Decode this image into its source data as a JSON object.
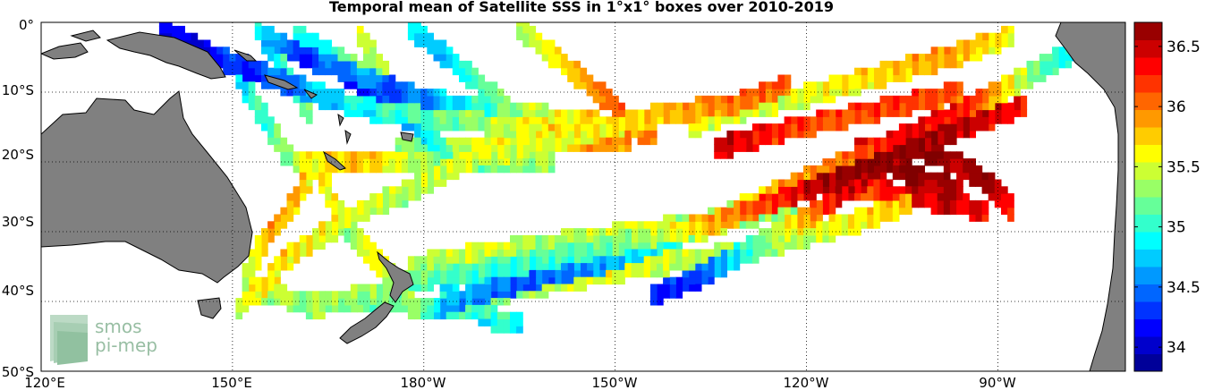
{
  "chart_data": {
    "type": "heatmap",
    "title": "Temporal mean of Satellite SSS in 1°x1° boxes over 2010-2019",
    "x_ticks": [
      "120°E",
      "150°E",
      "180°W",
      "150°W",
      "120°W",
      "90°W"
    ],
    "y_ticks": [
      "0°",
      "10°S",
      "20°S",
      "30°S",
      "40°S",
      "50°S"
    ],
    "xlim_deg_east": [
      120,
      290
    ],
    "ylim_deg": [
      0,
      -50
    ],
    "grid": true,
    "colorbar": {
      "range": [
        33.8,
        36.7
      ],
      "ticks": [
        "34",
        "34.5",
        "35",
        "35.5",
        "36",
        "36.5"
      ],
      "colormap": "jet"
    },
    "tracks": [
      {
        "lon": [
          237,
          228,
          218,
          205,
          195,
          186,
          178,
          170,
          163,
          158,
          156,
          153,
          151
        ],
        "lat": [
          -9,
          -12,
          -13,
          -16,
          -18,
          -20,
          -24,
          -27,
          -31,
          -34,
          -37,
          -39,
          -41
        ],
        "values": [
          36.1,
          36.0,
          35.8,
          35.6,
          35.5,
          35.5,
          35.4,
          35.5,
          35.6,
          35.7,
          35.7,
          35.6,
          35.5
        ]
      },
      {
        "lon": [
          274,
          262,
          252,
          243,
          234,
          224,
          214,
          204,
          194,
          185,
          178,
          172,
          166,
          162
        ],
        "lat": [
          -12,
          -16,
          -20,
          -23,
          -26,
          -29,
          -31,
          -33,
          -35,
          -36,
          -37,
          -39,
          -40,
          -41
        ],
        "values": [
          36.3,
          36.6,
          36.7,
          36.6,
          36.2,
          35.8,
          35.3,
          35.1,
          35.0,
          35.1,
          35.2,
          35.3,
          35.3,
          35.4
        ]
      },
      {
        "lon": [
          286,
          276,
          266,
          256,
          246,
          236,
          226,
          216,
          206,
          196,
          188,
          182
        ],
        "lat": [
          -2,
          -7,
          -12,
          -16,
          -20,
          -24,
          -28,
          -32,
          -35,
          -37,
          -39,
          -41
        ],
        "values": [
          34.6,
          35.2,
          36.2,
          36.4,
          36.0,
          35.9,
          35.3,
          34.9,
          34.6,
          34.4,
          34.6,
          34.7
        ]
      },
      {
        "lon": [
          282,
          271,
          262,
          253,
          246,
          240,
          234,
          228,
          222,
          216
        ],
        "lat": [
          -4,
          -9,
          -15,
          -20,
          -24,
          -28,
          -31,
          -34,
          -37,
          -39
        ],
        "values": [
          35.5,
          35.8,
          36.4,
          36.6,
          36.5,
          35.9,
          35.3,
          34.8,
          34.3,
          34.2
        ]
      },
      {
        "lon": [
          272,
          262,
          250,
          238,
          228,
          222
        ],
        "lat": [
          -2,
          -5,
          -8,
          -11,
          -13,
          -15
        ],
        "values": [
          35.6,
          35.9,
          35.7,
          35.5,
          35.5,
          35.6
        ]
      },
      {
        "lon": [
          264,
          254,
          244,
          234,
          226
        ],
        "lat": [
          -10,
          -12,
          -14,
          -16,
          -18
        ],
        "values": [
          36.1,
          36.2,
          36.1,
          36.3,
          36.5
        ]
      },
      {
        "lon": [
          139,
          147,
          156,
          165,
          174,
          184,
          194,
          204,
          212
        ],
        "lat": [
          -1,
          -5,
          -8,
          -11,
          -13,
          -14,
          -15,
          -16,
          -17
        ],
        "values": [
          34.0,
          34.2,
          34.4,
          34.8,
          35.0,
          35.2,
          35.5,
          35.8,
          36.0
        ]
      },
      {
        "lon": [
          155,
          161,
          168,
          176,
          185,
          194,
          203,
          211,
          216
        ],
        "lat": [
          -2,
          -5,
          -7,
          -10,
          -12,
          -13,
          -14,
          -15,
          -16
        ],
        "values": [
          34.6,
          34.3,
          34.6,
          34.4,
          34.8,
          35.3,
          35.6,
          35.9,
          36.0
        ]
      },
      {
        "lon": [
          168,
          172,
          176,
          180,
          184
        ],
        "lat": [
          -8,
          -10,
          -13,
          -16,
          -19
        ],
        "values": [
          34.2,
          34.4,
          34.7,
          35.0,
          35.2
        ]
      },
      {
        "lon": [
          151,
          153,
          155,
          157,
          158,
          160,
          164,
          170,
          178,
          186,
          194,
          200
        ],
        "lat": [
          -8,
          -11,
          -14,
          -17,
          -19,
          -20,
          -20,
          -20,
          -20,
          -20,
          -20,
          -20
        ],
        "values": [
          34.9,
          35.0,
          35.1,
          35.2,
          35.3,
          35.5,
          35.7,
          35.8,
          35.4,
          35.2,
          35.3,
          35.4
        ]
      },
      {
        "lon": [
          176,
          182,
          188,
          194,
          200,
          206,
          212
        ],
        "lat": [
          -18,
          -18,
          -18,
          -18,
          -17,
          -17,
          -17
        ],
        "values": [
          35.2,
          35.3,
          35.5,
          35.7,
          35.8,
          36.0,
          36.1
        ]
      },
      {
        "lon": [
          178,
          182,
          186,
          190,
          194
        ],
        "lat": [
          -1,
          -4,
          -7,
          -10,
          -13
        ],
        "values": [
          35.0,
          34.8,
          35.1,
          35.3,
          35.4
        ]
      },
      {
        "lon": [
          195,
          199,
          203,
          207,
          211
        ],
        "lat": [
          -1,
          -4,
          -7,
          -10,
          -13
        ],
        "values": [
          35.3,
          35.5,
          35.7,
          35.9,
          36.0
        ]
      },
      {
        "lon": [
          160,
          164,
          168,
          172,
          176,
          181,
          187
        ],
        "lat": [
          -2,
          -4,
          -6,
          -8,
          -10,
          -12,
          -14
        ],
        "values": [
          35.0,
          34.9,
          35.1,
          35.3,
          35.2,
          35.4,
          35.5
        ]
      },
      {
        "lon": [
          170,
          172,
          174,
          176,
          178
        ],
        "lat": [
          -2,
          -5,
          -8,
          -11,
          -14
        ],
        "values": [
          35.4,
          35.5,
          35.3,
          35.2,
          35.6
        ]
      },
      {
        "lon": [
          154,
          156,
          158,
          160,
          162
        ],
        "lat": [
          -1,
          -4,
          -7,
          -10,
          -13
        ],
        "values": [
          34.8,
          34.9,
          35.0,
          35.1,
          35.2
        ]
      },
      {
        "lon": [
          163,
          161,
          159,
          157,
          155,
          154,
          153,
          152,
          152
        ],
        "lat": [
          -21,
          -24,
          -27,
          -29,
          -31,
          -33,
          -35,
          -37,
          -39
        ],
        "values": [
          35.6,
          35.8,
          35.7,
          35.9,
          35.8,
          35.7,
          35.6,
          35.5,
          35.4
        ]
      },
      {
        "lon": [
          164,
          165,
          167,
          169,
          171,
          173,
          175
        ],
        "lat": [
          -22,
          -25,
          -28,
          -31,
          -33,
          -35,
          -37
        ],
        "values": [
          35.7,
          35.6,
          35.4,
          35.3,
          35.5,
          35.6,
          35.4
        ]
      },
      {
        "lon": [
          152,
          156,
          160,
          165,
          170,
          175,
          180,
          185,
          190
        ],
        "lat": [
          -39,
          -39,
          -40,
          -40,
          -40,
          -40,
          -41,
          -41,
          -41
        ],
        "values": [
          35.5,
          35.4,
          35.3,
          35.3,
          35.2,
          35.3,
          35.2,
          35.1,
          35.1
        ]
      },
      {
        "lon": [
          180,
          185,
          190,
          196,
          202,
          208,
          214,
          222,
          230,
          238,
          246,
          256
        ],
        "lat": [
          -41,
          -40,
          -39,
          -38,
          -37,
          -36,
          -35,
          -34,
          -33,
          -31,
          -29,
          -26
        ],
        "values": [
          35.0,
          35.1,
          35.3,
          35.4,
          35.5,
          35.6,
          35.5,
          35.4,
          35.3,
          35.4,
          35.6,
          35.8
        ]
      },
      {
        "lon": [
          183,
          186,
          189,
          192,
          195
        ],
        "lat": [
          -38,
          -40,
          -42,
          -43,
          -43
        ],
        "values": [
          34.8,
          35.1,
          34.9,
          35.0,
          34.9
        ]
      },
      {
        "lon": [
          178,
          184,
          190,
          198,
          206,
          214,
          222,
          230,
          238
        ],
        "lat": [
          -35,
          -34,
          -33,
          -32,
          -31,
          -30,
          -29,
          -28,
          -26
        ],
        "values": [
          35.3,
          35.4,
          35.5,
          35.3,
          35.4,
          35.5,
          35.2,
          35.3,
          35.4
        ]
      },
      {
        "lon": [
          186,
          191,
          197,
          203,
          209,
          215,
          221,
          227
        ],
        "lat": [
          -34,
          -33,
          -33,
          -32,
          -32,
          -31,
          -30,
          -29
        ],
        "values": [
          35.2,
          35.3,
          35.4,
          35.5,
          35.3,
          35.4,
          35.5,
          35.6
        ]
      },
      {
        "lon": [
          255,
          260,
          265,
          268,
          270,
          272
        ],
        "lat": [
          -17,
          -19,
          -21,
          -23,
          -25,
          -27
        ],
        "values": [
          36.7,
          36.7,
          36.6,
          36.6,
          36.5,
          36.4
        ]
      },
      {
        "lon": [
          248,
          252,
          256,
          260,
          264
        ],
        "lat": [
          -18,
          -20,
          -22,
          -23,
          -24
        ],
        "values": [
          36.5,
          36.6,
          36.7,
          36.6,
          36.5
        ]
      },
      {
        "lon": [
          244,
          250,
          256,
          262,
          268
        ],
        "lat": [
          -23,
          -24,
          -25,
          -26,
          -27
        ],
        "values": [
          36.1,
          36.2,
          36.4,
          36.5,
          36.3
        ]
      }
    ]
  },
  "logo": {
    "line1": "smos",
    "line2": "pi-mep"
  }
}
